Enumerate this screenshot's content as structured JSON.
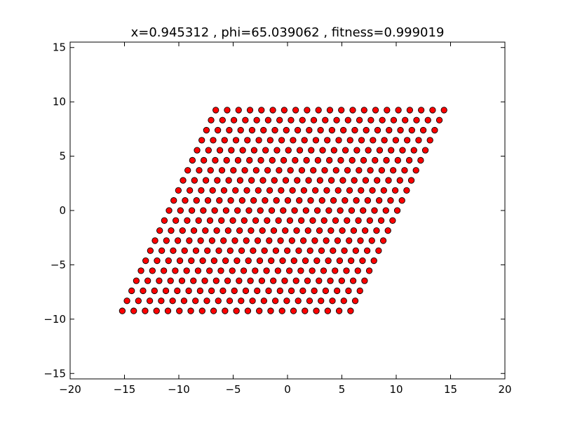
{
  "chart_data": {
    "type": "scatter",
    "title": "x=0.945312 , phi=65.039062 , fitness=0.999019",
    "xlabel": "",
    "ylabel": "",
    "xlim": [
      -20,
      20
    ],
    "ylim": [
      -15.5,
      15.5
    ],
    "xticks": [
      -20,
      -15,
      -10,
      -5,
      0,
      5,
      10,
      15,
      20
    ],
    "xtick_labels": [
      "−20",
      "−15",
      "−10",
      "−5",
      "0",
      "5",
      "10",
      "15",
      "20"
    ],
    "yticks": [
      -15,
      -10,
      -5,
      0,
      5,
      10,
      15
    ],
    "ytick_labels": [
      "−15",
      "−10",
      "−5",
      "0",
      "5",
      "10",
      "15"
    ],
    "grid": false,
    "marker_color": "#ff0000",
    "marker_edge_color": "#000000",
    "lattice": {
      "spacing_x": 1.05,
      "row_spacing_y": 0.924,
      "row_shift_x": 0.43,
      "first_row_y": -9.24,
      "first_row_start_x": -15.2,
      "rows": 21,
      "points_per_row": 21
    },
    "series": [
      {
        "points_description": "parallelogram lattice of 441 points",
        "color": "#ff0000"
      }
    ]
  }
}
